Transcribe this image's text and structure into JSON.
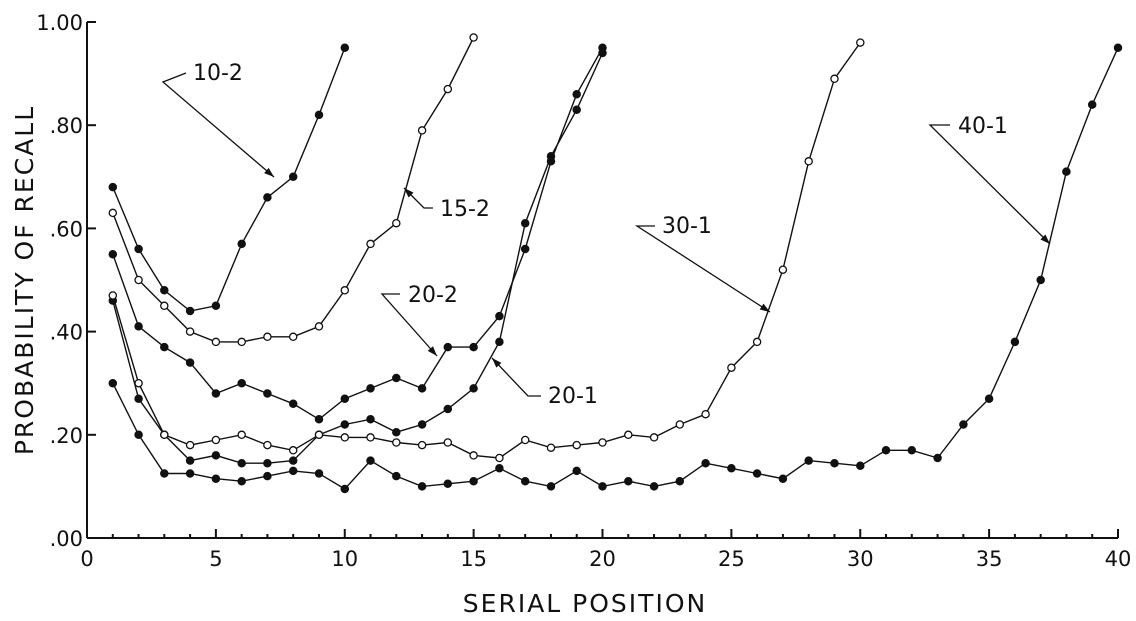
{
  "chart_data": {
    "type": "line",
    "title": "",
    "xlabel": "SERIAL POSITION",
    "ylabel": "PROBABILITY OF RECALL",
    "xlim": [
      0,
      40
    ],
    "ylim": [
      0.0,
      1.0
    ],
    "x_ticks": [
      0,
      5,
      10,
      15,
      20,
      25,
      30,
      35,
      40
    ],
    "x_tick_labels": [
      "0",
      "5",
      "10",
      "15",
      "20",
      "25",
      "30",
      "35",
      "40"
    ],
    "y_ticks": [
      0.0,
      0.2,
      0.4,
      0.6,
      0.8,
      1.0
    ],
    "y_tick_labels": [
      ".00",
      ".20",
      ".40",
      ".60",
      ".80",
      "1.00"
    ],
    "grid": false,
    "series": [
      {
        "name": "10-2",
        "marker": "filled",
        "x": [
          1,
          2,
          3,
          4,
          5,
          6,
          7,
          8,
          9,
          10
        ],
        "values": [
          0.68,
          0.56,
          0.48,
          0.44,
          0.45,
          0.57,
          0.66,
          0.7,
          0.82,
          0.95
        ]
      },
      {
        "name": "15-2",
        "marker": "open",
        "x": [
          1,
          2,
          3,
          4,
          5,
          6,
          7,
          8,
          9,
          10,
          11,
          12,
          13,
          14,
          15
        ],
        "values": [
          0.63,
          0.5,
          0.45,
          0.4,
          0.38,
          0.38,
          0.39,
          0.39,
          0.41,
          0.48,
          0.57,
          0.61,
          0.79,
          0.87,
          0.97
        ]
      },
      {
        "name": "20-2",
        "marker": "filled",
        "x": [
          1,
          2,
          3,
          4,
          5,
          6,
          7,
          8,
          9,
          10,
          11,
          12,
          13,
          14,
          15,
          16,
          17,
          18,
          19,
          20
        ],
        "values": [
          0.55,
          0.41,
          0.37,
          0.34,
          0.28,
          0.3,
          0.28,
          0.26,
          0.23,
          0.27,
          0.29,
          0.31,
          0.29,
          0.37,
          0.37,
          0.43,
          0.56,
          0.73,
          0.86,
          0.95
        ]
      },
      {
        "name": "20-1",
        "marker": "filled",
        "x": [
          1,
          2,
          3,
          4,
          5,
          6,
          7,
          8,
          9,
          10,
          11,
          12,
          13,
          14,
          15,
          16,
          17,
          18,
          19,
          20
        ],
        "values": [
          0.46,
          0.27,
          0.2,
          0.15,
          0.16,
          0.145,
          0.145,
          0.15,
          0.2,
          0.22,
          0.23,
          0.205,
          0.22,
          0.25,
          0.29,
          0.38,
          0.61,
          0.74,
          0.83,
          0.94
        ]
      },
      {
        "name": "30-1",
        "marker": "open",
        "x": [
          1,
          2,
          3,
          4,
          5,
          6,
          7,
          8,
          9,
          10,
          11,
          12,
          13,
          14,
          15,
          16,
          17,
          18,
          19,
          20,
          21,
          22,
          23,
          24,
          25,
          26,
          27,
          28,
          29,
          30
        ],
        "values": [
          0.47,
          0.3,
          0.2,
          0.18,
          0.19,
          0.2,
          0.18,
          0.17,
          0.2,
          0.195,
          0.195,
          0.185,
          0.18,
          0.185,
          0.16,
          0.155,
          0.19,
          0.175,
          0.18,
          0.185,
          0.2,
          0.195,
          0.22,
          0.24,
          0.33,
          0.38,
          0.52,
          0.73,
          0.89,
          0.96
        ]
      },
      {
        "name": "40-1",
        "marker": "filled",
        "x": [
          1,
          2,
          3,
          4,
          5,
          6,
          7,
          8,
          9,
          10,
          11,
          12,
          13,
          14,
          15,
          16,
          17,
          18,
          19,
          20,
          21,
          22,
          23,
          24,
          25,
          26,
          27,
          28,
          29,
          30,
          31,
          32,
          33,
          34,
          35,
          36,
          37,
          38,
          39,
          40
        ],
        "values": [
          0.3,
          0.2,
          0.125,
          0.125,
          0.115,
          0.11,
          0.12,
          0.13,
          0.125,
          0.095,
          0.15,
          0.12,
          0.1,
          0.105,
          0.11,
          0.135,
          0.11,
          0.1,
          0.13,
          0.1,
          0.11,
          0.1,
          0.11,
          0.145,
          0.135,
          0.125,
          0.115,
          0.15,
          0.145,
          0.14,
          0.17,
          0.17,
          0.155,
          0.22,
          0.27,
          0.38,
          0.5,
          0.71,
          0.84,
          0.95
        ]
      }
    ],
    "annotations": [
      {
        "text": "10-2",
        "series": "10-2"
      },
      {
        "text": "15-2",
        "series": "15-2"
      },
      {
        "text": "20-2",
        "series": "20-2"
      },
      {
        "text": "20-1",
        "series": "20-1"
      },
      {
        "text": "30-1",
        "series": "30-1"
      },
      {
        "text": "40-1",
        "series": "40-1"
      }
    ]
  }
}
